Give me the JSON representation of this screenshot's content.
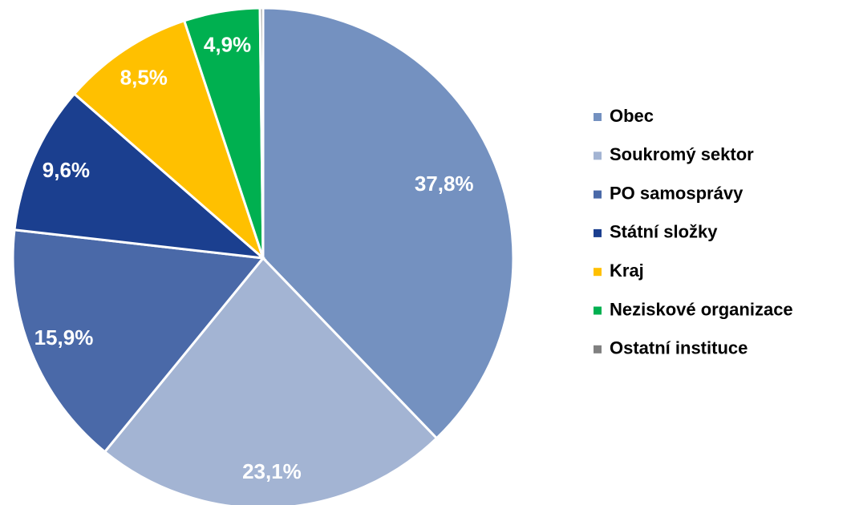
{
  "chart_data": {
    "type": "pie",
    "categories": [
      "Obec",
      "Soukromý sektor",
      "PO samosprávy",
      "Státní složky",
      "Kraj",
      "Neziskové organizace",
      "Ostatní instituce"
    ],
    "values": [
      37.8,
      23.1,
      15.9,
      9.6,
      8.5,
      4.9,
      0.2
    ],
    "value_labels": [
      "37,8%",
      "23,1%",
      "15,9%",
      "9,6%",
      "8,5%",
      "4,9%",
      null
    ],
    "colors": [
      "#7491c0",
      "#a3b4d3",
      "#4a69a8",
      "#1b3f8f",
      "#ffc000",
      "#00b050",
      "#808080"
    ],
    "legend": "right"
  }
}
